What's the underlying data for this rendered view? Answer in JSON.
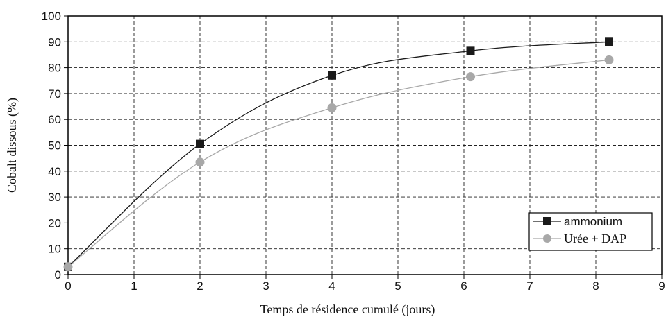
{
  "chart_data": {
    "type": "line",
    "title": "",
    "xlabel": "Temps de résidence cumulé (jours)",
    "ylabel": "Cobalt dissous (%)",
    "xlim": [
      0,
      9
    ],
    "ylim": [
      0,
      100
    ],
    "x_ticks": [
      0,
      1,
      2,
      3,
      4,
      5,
      6,
      7,
      8,
      9
    ],
    "y_ticks": [
      0,
      10,
      20,
      30,
      40,
      50,
      60,
      70,
      80,
      90,
      100
    ],
    "grid": true,
    "legend_position": "bottom-right",
    "series": [
      {
        "name": "ammonium",
        "marker": "square",
        "color": "#1a1a1a",
        "x": [
          0,
          2,
          4,
          6.1,
          8.2
        ],
        "y": [
          3,
          50.5,
          77,
          86.5,
          90
        ]
      },
      {
        "name": "Urée + DAP",
        "marker": "circle",
        "color": "#a8a8a8",
        "x": [
          0,
          2,
          4,
          6.1,
          8.2
        ],
        "y": [
          3,
          43.5,
          64.5,
          76.5,
          83
        ]
      }
    ]
  }
}
